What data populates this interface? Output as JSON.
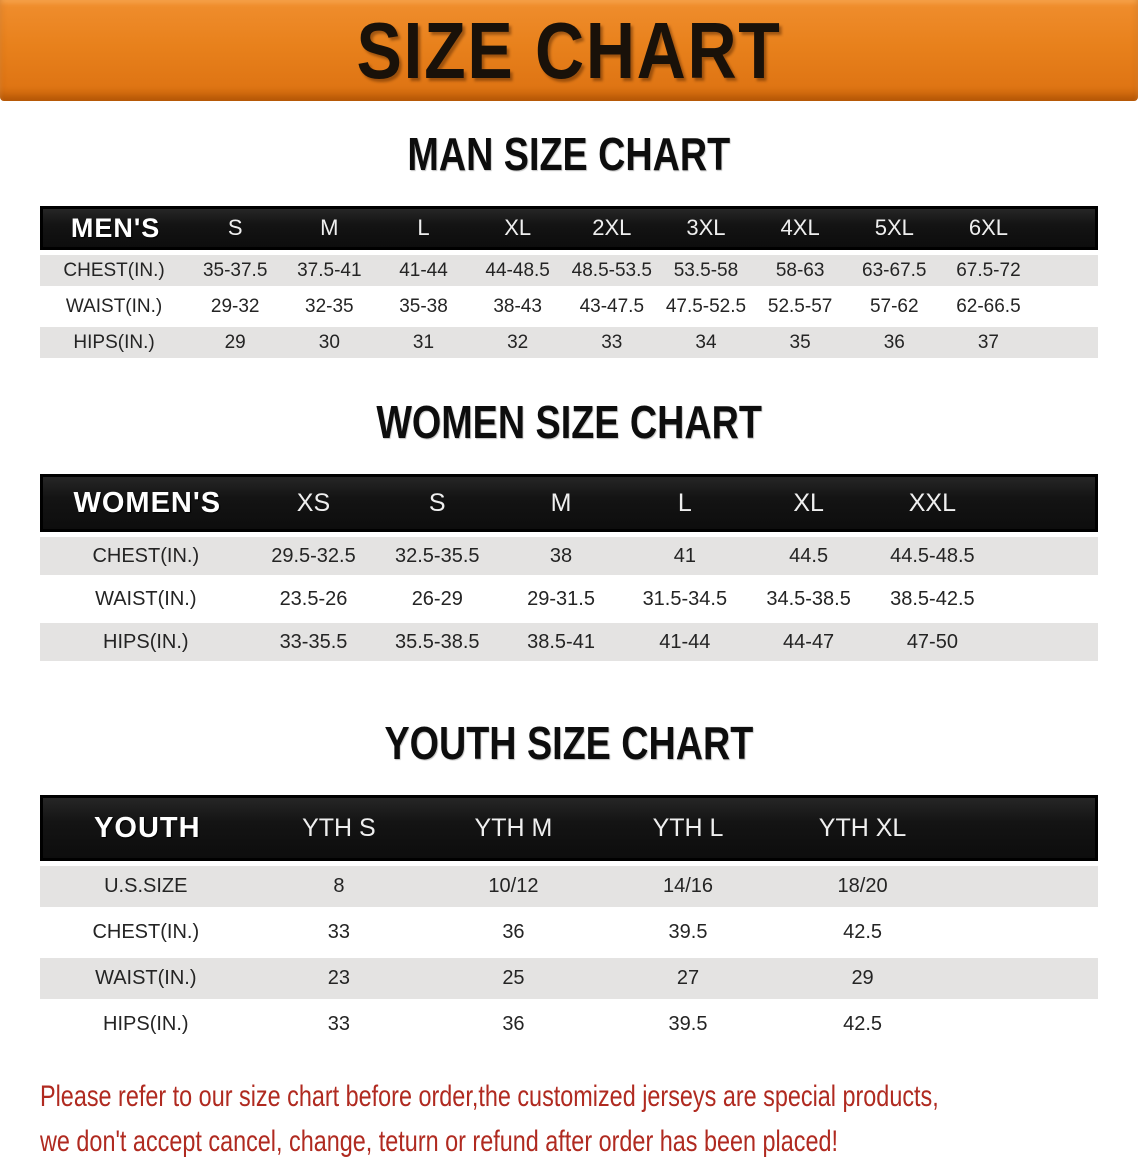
{
  "banner": {
    "title": "SIZE CHART"
  },
  "colors": {
    "banner_orange": "#e8811c",
    "header_black": "#141414",
    "row_gray": "#e4e3e2",
    "disclaimer_red": "#b02a20"
  },
  "chart_data": [
    {
      "type": "table",
      "title": "MAN SIZE CHART",
      "header_label": "MEN'S",
      "columns": [
        "S",
        "M",
        "L",
        "XL",
        "2XL",
        "3XL",
        "4XL",
        "5XL",
        "6XL"
      ],
      "rows": [
        {
          "label": "CHEST(IN.)",
          "values": [
            "35-37.5",
            "37.5-41",
            "41-44",
            "44-48.5",
            "48.5-53.5",
            "53.5-58",
            "58-63",
            "63-67.5",
            "67.5-72"
          ]
        },
        {
          "label": "WAIST(IN.)",
          "values": [
            "29-32",
            "32-35",
            "35-38",
            "38-43",
            "43-47.5",
            "47.5-52.5",
            "52.5-57",
            "57-62",
            "62-66.5"
          ]
        },
        {
          "label": "HIPS(IN.)",
          "values": [
            "29",
            "30",
            "31",
            "32",
            "33",
            "34",
            "35",
            "36",
            "37"
          ]
        }
      ]
    },
    {
      "type": "table",
      "title": "WOMEN SIZE CHART",
      "header_label": "WOMEN'S",
      "columns": [
        "XS",
        "S",
        "M",
        "L",
        "XL",
        "XXL"
      ],
      "rows": [
        {
          "label": "CHEST(IN.)",
          "values": [
            "29.5-32.5",
            "32.5-35.5",
            "38",
            "41",
            "44.5",
            "44.5-48.5"
          ]
        },
        {
          "label": "WAIST(IN.)",
          "values": [
            "23.5-26",
            "26-29",
            "29-31.5",
            "31.5-34.5",
            "34.5-38.5",
            "38.5-42.5"
          ]
        },
        {
          "label": "HIPS(IN.)",
          "values": [
            "33-35.5",
            "35.5-38.5",
            "38.5-41",
            "41-44",
            "44-47",
            "47-50"
          ]
        }
      ]
    },
    {
      "type": "table",
      "title": "YOUTH SIZE CHART",
      "header_label": "YOUTH",
      "columns": [
        "YTH S",
        "YTH M",
        "YTH L",
        "YTH XL"
      ],
      "rows": [
        {
          "label": "U.S.SIZE",
          "values": [
            "8",
            "10/12",
            "14/16",
            "18/20"
          ]
        },
        {
          "label": "CHEST(IN.)",
          "values": [
            "33",
            "36",
            "39.5",
            "42.5"
          ]
        },
        {
          "label": "WAIST(IN.)",
          "values": [
            "23",
            "25",
            "27",
            "29"
          ]
        },
        {
          "label": "HIPS(IN.)",
          "values": [
            "33",
            "36",
            "39.5",
            "42.5"
          ]
        }
      ]
    }
  ],
  "disclaimer": {
    "line1": "Please refer to our size chart before order,the customized jerseys are special products,",
    "line2": "we don't accept cancel, change, teturn or refund after order has been placed!"
  }
}
